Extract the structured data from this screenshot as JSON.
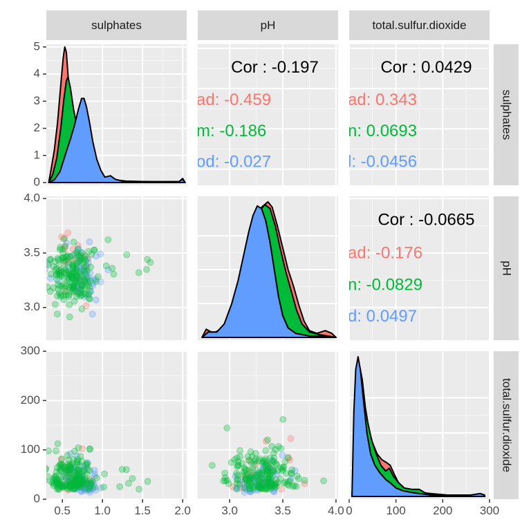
{
  "colors": {
    "panel_bg": "#EBEBEB",
    "grid_major": "#FFFFFF",
    "strip_bg": "#D9D9D9",
    "strip_text": "#1A1A1A",
    "tick_text": "#4D4D4D",
    "cor_overall": "#000000"
  },
  "chart_data": {
    "type": "scatter-matrix",
    "variables": [
      "sulphates",
      "pH",
      "total.sulfur.dioxide"
    ],
    "groups": [
      {
        "name": "Bad",
        "color": "#F8766D"
      },
      {
        "name": "Medium",
        "color": "#00BA38"
      },
      {
        "name": "Good",
        "color": "#619CFF"
      }
    ],
    "axes": {
      "sulphates": {
        "ticks": [
          "0.5",
          "1.0",
          "1.5",
          "2.0"
        ],
        "tick_values": [
          0.5,
          1.0,
          1.5,
          2.0
        ],
        "range": [
          0.3,
          2.05
        ]
      },
      "pH": {
        "ticks": [
          "3.0",
          "3.5",
          "4.0"
        ],
        "tick_values": [
          3.0,
          3.5,
          4.0
        ],
        "range": [
          2.7,
          4.02
        ]
      },
      "total.sulfur.dioxide": {
        "ticks": [
          "0",
          "100",
          "200",
          "300"
        ],
        "tick_values": [
          0,
          100,
          200,
          300
        ],
        "range": [
          0,
          300
        ]
      }
    },
    "density_axis": {
      "ticks": [
        "0",
        "1",
        "2",
        "3",
        "4",
        "5"
      ],
      "tick_values": [
        0,
        1,
        2,
        3,
        4,
        5
      ],
      "range": [
        0,
        5.1
      ]
    },
    "correlations": [
      {
        "row": "sulphates",
        "col": "pH",
        "overall": "Cor : -0.197",
        "groups": [
          "ad: -0.459",
          "m: -0.186",
          "od: -0.027"
        ]
      },
      {
        "row": "sulphates",
        "col": "total.sulfur.dioxide",
        "overall": "Cor : 0.0429",
        "groups": [
          "ad: 0.343",
          "n: 0.0693",
          "l: -0.0456"
        ]
      },
      {
        "row": "pH",
        "col": "total.sulfur.dioxide",
        "overall": "Cor : -0.0665",
        "groups": [
          "ad: -0.176",
          "n: -0.0829",
          "d: 0.0497"
        ]
      }
    ],
    "densities": {
      "sulphates": [
        {
          "group": "Bad",
          "points": [
            [
              0.33,
              0
            ],
            [
              0.36,
              0.5
            ],
            [
              0.4,
              1.2
            ],
            [
              0.44,
              2.2
            ],
            [
              0.48,
              3.6
            ],
            [
              0.51,
              4.6
            ],
            [
              0.53,
              5.0
            ],
            [
              0.55,
              4.8
            ],
            [
              0.57,
              4.0
            ],
            [
              0.6,
              2.8
            ],
            [
              0.64,
              1.6
            ],
            [
              0.7,
              0.8
            ],
            [
              0.78,
              0.35
            ],
            [
              0.9,
              0.15
            ],
            [
              1.05,
              0.08
            ],
            [
              1.3,
              0.03
            ],
            [
              1.6,
              0.02
            ],
            [
              1.95,
              0.02
            ],
            [
              2.0,
              0.15
            ],
            [
              2.03,
              0
            ]
          ]
        },
        {
          "group": "Medium",
          "points": [
            [
              0.33,
              0
            ],
            [
              0.38,
              0.3
            ],
            [
              0.43,
              0.9
            ],
            [
              0.48,
              2.0
            ],
            [
              0.52,
              3.1
            ],
            [
              0.55,
              3.75
            ],
            [
              0.57,
              3.9
            ],
            [
              0.6,
              3.5
            ],
            [
              0.64,
              2.7
            ],
            [
              0.68,
              2.1
            ],
            [
              0.72,
              1.7
            ],
            [
              0.78,
              1.2
            ],
            [
              0.85,
              0.7
            ],
            [
              0.95,
              0.3
            ],
            [
              1.05,
              0.15
            ],
            [
              1.15,
              0.1
            ],
            [
              1.3,
              0.05
            ],
            [
              1.6,
              0.03
            ],
            [
              1.98,
              0.03
            ],
            [
              2.0,
              0.1
            ],
            [
              2.03,
              0
            ]
          ]
        },
        {
          "group": "Good",
          "points": [
            [
              0.33,
              0
            ],
            [
              0.4,
              0.1
            ],
            [
              0.47,
              0.4
            ],
            [
              0.54,
              1.05
            ],
            [
              0.6,
              1.6
            ],
            [
              0.65,
              2.1
            ],
            [
              0.7,
              2.7
            ],
            [
              0.74,
              3.1
            ],
            [
              0.77,
              3.1
            ],
            [
              0.8,
              2.8
            ],
            [
              0.84,
              2.2
            ],
            [
              0.88,
              1.5
            ],
            [
              0.93,
              0.85
            ],
            [
              0.98,
              0.45
            ],
            [
              1.03,
              0.2
            ],
            [
              1.1,
              0.25
            ],
            [
              1.16,
              0.12
            ],
            [
              1.25,
              0.05
            ],
            [
              1.5,
              0.03
            ],
            [
              1.95,
              0.03
            ],
            [
              2.0,
              0.12
            ],
            [
              2.03,
              0
            ]
          ]
        }
      ],
      "pH": [
        {
          "group": "Bad",
          "points": [
            [
              2.74,
              0
            ],
            [
              2.78,
              0.06
            ],
            [
              2.85,
              0.03
            ],
            [
              2.95,
              0.08
            ],
            [
              3.05,
              0.22
            ],
            [
              3.12,
              0.4
            ],
            [
              3.18,
              0.62
            ],
            [
              3.24,
              0.84
            ],
            [
              3.3,
              0.96
            ],
            [
              3.36,
              1.0
            ],
            [
              3.4,
              0.96
            ],
            [
              3.45,
              0.82
            ],
            [
              3.5,
              0.66
            ],
            [
              3.55,
              0.5
            ],
            [
              3.6,
              0.38
            ],
            [
              3.65,
              0.24
            ],
            [
              3.7,
              0.12
            ],
            [
              3.75,
              0.05
            ],
            [
              3.82,
              0.03
            ],
            [
              3.9,
              0.05
            ],
            [
              3.96,
              0.03
            ],
            [
              4.0,
              0
            ]
          ]
        },
        {
          "group": "Medium",
          "points": [
            [
              2.74,
              0
            ],
            [
              2.8,
              0.04
            ],
            [
              2.88,
              0.04
            ],
            [
              2.95,
              0.08
            ],
            [
              3.03,
              0.2
            ],
            [
              3.1,
              0.38
            ],
            [
              3.17,
              0.58
            ],
            [
              3.23,
              0.8
            ],
            [
              3.28,
              0.93
            ],
            [
              3.33,
              0.98
            ],
            [
              3.38,
              0.95
            ],
            [
              3.43,
              0.82
            ],
            [
              3.48,
              0.64
            ],
            [
              3.53,
              0.48
            ],
            [
              3.58,
              0.34
            ],
            [
              3.63,
              0.2
            ],
            [
              3.68,
              0.1
            ],
            [
              3.75,
              0.04
            ],
            [
              3.85,
              0.02
            ],
            [
              4.0,
              0
            ]
          ]
        },
        {
          "group": "Good",
          "points": [
            [
              2.74,
              0
            ],
            [
              2.8,
              0.04
            ],
            [
              2.88,
              0.04
            ],
            [
              2.95,
              0.1
            ],
            [
              3.02,
              0.25
            ],
            [
              3.08,
              0.42
            ],
            [
              3.13,
              0.6
            ],
            [
              3.18,
              0.78
            ],
            [
              3.22,
              0.9
            ],
            [
              3.26,
              0.97
            ],
            [
              3.3,
              0.95
            ],
            [
              3.34,
              0.86
            ],
            [
              3.38,
              0.7
            ],
            [
              3.42,
              0.5
            ],
            [
              3.46,
              0.3
            ],
            [
              3.5,
              0.16
            ],
            [
              3.55,
              0.07
            ],
            [
              3.62,
              0.03
            ],
            [
              3.75,
              0.01
            ],
            [
              3.85,
              0.01
            ],
            [
              4.0,
              0
            ]
          ]
        }
      ],
      "total.sulfur.dioxide": [
        {
          "group": "Bad",
          "points": [
            [
              6,
              0
            ],
            [
              12,
              0.35
            ],
            [
              18,
              0.7
            ],
            [
              22,
              0.93
            ],
            [
              28,
              0.83
            ],
            [
              35,
              0.62
            ],
            [
              42,
              0.48
            ],
            [
              50,
              0.38
            ],
            [
              60,
              0.3
            ],
            [
              70,
              0.26
            ],
            [
              80,
              0.24
            ],
            [
              88,
              0.22
            ],
            [
              96,
              0.16
            ],
            [
              105,
              0.1
            ],
            [
              115,
              0.06
            ],
            [
              130,
              0.04
            ],
            [
              150,
              0.03
            ],
            [
              175,
              0.02
            ],
            [
              210,
              0.01
            ],
            [
              260,
              0.01
            ],
            [
              280,
              0.02
            ],
            [
              289,
              0.01
            ],
            [
              290,
              0
            ]
          ]
        },
        {
          "group": "Medium",
          "points": [
            [
              6,
              0
            ],
            [
              11,
              0.4
            ],
            [
              16,
              0.8
            ],
            [
              20,
              0.96
            ],
            [
              25,
              0.88
            ],
            [
              32,
              0.68
            ],
            [
              40,
              0.52
            ],
            [
              48,
              0.4
            ],
            [
              58,
              0.3
            ],
            [
              68,
              0.22
            ],
            [
              78,
              0.18
            ],
            [
              86,
              0.2
            ],
            [
              95,
              0.14
            ],
            [
              105,
              0.1
            ],
            [
              118,
              0.06
            ],
            [
              135,
              0.05
            ],
            [
              150,
              0.05
            ],
            [
              165,
              0.02
            ],
            [
              190,
              0.01
            ],
            [
              230,
              0.01
            ],
            [
              270,
              0.01
            ],
            [
              280,
              0.02
            ],
            [
              289,
              0.01
            ],
            [
              290,
              0
            ]
          ]
        },
        {
          "group": "Good",
          "points": [
            [
              6,
              0
            ],
            [
              10,
              0.6
            ],
            [
              14,
              0.9
            ],
            [
              19,
              0.99
            ],
            [
              24,
              0.9
            ],
            [
              30,
              0.7
            ],
            [
              38,
              0.45
            ],
            [
              46,
              0.3
            ],
            [
              55,
              0.22
            ],
            [
              65,
              0.17
            ],
            [
              78,
              0.12
            ],
            [
              90,
              0.09
            ],
            [
              100,
              0.06
            ],
            [
              115,
              0.04
            ],
            [
              130,
              0.03
            ],
            [
              150,
              0.02
            ],
            [
              175,
              0.01
            ],
            [
              210,
              0.01
            ],
            [
              260,
              0.01
            ],
            [
              280,
              0.02
            ],
            [
              289,
              0.01
            ],
            [
              290,
              0
            ]
          ]
        }
      ]
    },
    "scatter_seed": 20240611,
    "scatter_point_counts": {
      "Bad": 60,
      "Medium": 520,
      "Good": 150
    }
  }
}
